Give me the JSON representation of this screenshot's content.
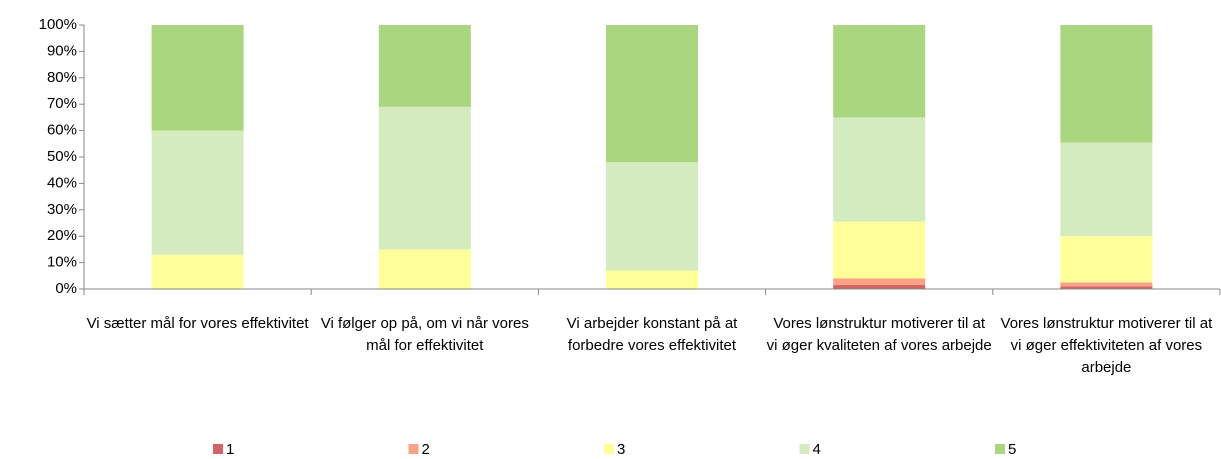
{
  "chart_data": {
    "type": "stacked_bar",
    "categories": [
      "Vi sætter mål for vores effektivitet",
      "Vi følger op på, om vi når vores mål for effektivitet",
      "Vi arbejder konstant på at forbedre vores effektivitet",
      "Vores lønstruktur motiverer til at vi øger kvaliteten af vores arbejde",
      "Vores lønstruktur motiverer til at vi øger effektiviteten af vores arbejde"
    ],
    "series": [
      {
        "name": "1",
        "color": "#d26464",
        "values": [
          0,
          0,
          0,
          1.5,
          1
        ]
      },
      {
        "name": "2",
        "color": "#f9a386",
        "values": [
          0,
          0,
          0,
          2.5,
          1.5
        ]
      },
      {
        "name": "3",
        "color": "#ffff99",
        "values": [
          13,
          15,
          7,
          21.5,
          17.5
        ]
      },
      {
        "name": "4",
        "color": "#d4eabf",
        "values": [
          47,
          54,
          41,
          39.5,
          35.5
        ]
      },
      {
        "name": "5",
        "color": "#a9d67e",
        "values": [
          40,
          31,
          52,
          35,
          44.5
        ]
      }
    ],
    "ylim": [
      0,
      100
    ],
    "yticks": [
      {
        "value": 0,
        "label": "0%"
      },
      {
        "value": 10,
        "label": "10%"
      },
      {
        "value": 20,
        "label": "20%"
      },
      {
        "value": 30,
        "label": "30%"
      },
      {
        "value": 40,
        "label": "40%"
      },
      {
        "value": 50,
        "label": "50%"
      },
      {
        "value": 60,
        "label": "60%"
      },
      {
        "value": 70,
        "label": "70%"
      },
      {
        "value": 80,
        "label": "80%"
      },
      {
        "value": 90,
        "label": "90%"
      },
      {
        "value": 100,
        "label": "100%"
      }
    ],
    "grid": false,
    "legend": "bottom"
  }
}
